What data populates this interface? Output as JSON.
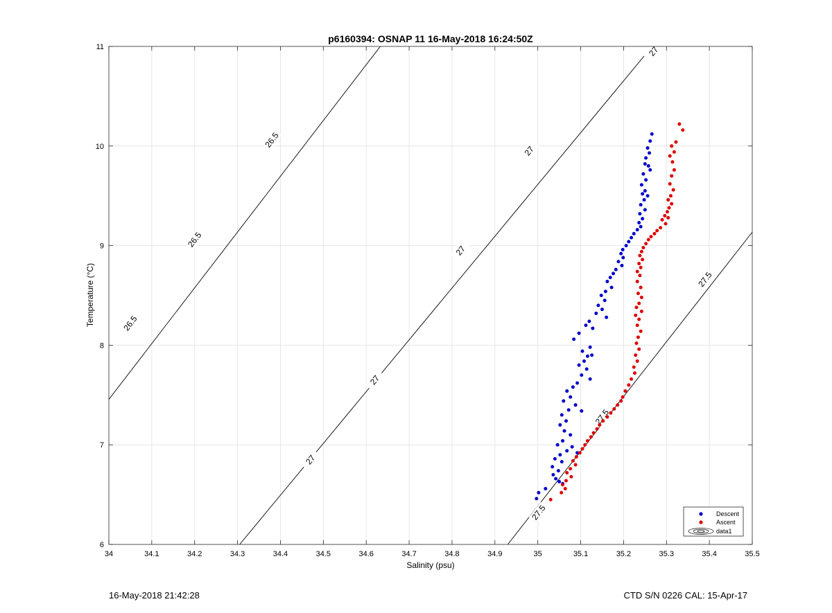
{
  "footer": {
    "left": "16-May-2018 21:42:28",
    "right": "CTD S/N 0226  CAL: 15-Apr-17"
  },
  "chart_data": {
    "type": "scatter",
    "title": "p6160394: OSNAP 11 16-May-2018 16:24:50Z",
    "xlabel": "Salinity (psu)",
    "ylabel": "Temperature (°C)",
    "xlim": [
      34,
      35.5
    ],
    "ylim": [
      6,
      11
    ],
    "xticks": [
      "34",
      "34.1",
      "34.2",
      "34.3",
      "34.4",
      "34.5",
      "34.6",
      "34.7",
      "34.8",
      "34.9",
      "35",
      "35.1",
      "35.2",
      "35.3",
      "35.4",
      "35.5"
    ],
    "yticks": [
      "6",
      "7",
      "8",
      "9",
      "10",
      "11"
    ],
    "grid": true,
    "legend_position": "bottom-right",
    "legend": [
      "Descent",
      "Ascent",
      "data1"
    ],
    "series": [
      {
        "name": "Descent",
        "color": "#0000cc",
        "points": [
          [
            35.266,
            10.12
          ],
          [
            35.262,
            10.05
          ],
          [
            35.256,
            9.98
          ],
          [
            35.26,
            9.93
          ],
          [
            35.252,
            9.88
          ],
          [
            35.25,
            9.82
          ],
          [
            35.258,
            9.8
          ],
          [
            35.262,
            9.76
          ],
          [
            35.246,
            9.72
          ],
          [
            35.252,
            9.66
          ],
          [
            35.242,
            9.61
          ],
          [
            35.25,
            9.55
          ],
          [
            35.244,
            9.52
          ],
          [
            35.256,
            9.5
          ],
          [
            35.248,
            9.46
          ],
          [
            35.24,
            9.41
          ],
          [
            35.25,
            9.36
          ],
          [
            35.238,
            9.32
          ],
          [
            35.244,
            9.27
          ],
          [
            35.236,
            9.23
          ],
          [
            35.24,
            9.19
          ],
          [
            35.232,
            9.16
          ],
          [
            35.224,
            9.12
          ],
          [
            35.218,
            9.08
          ],
          [
            35.212,
            9.04
          ],
          [
            35.206,
            9.0
          ],
          [
            35.198,
            8.96
          ],
          [
            35.194,
            8.92
          ],
          [
            35.199,
            8.88
          ],
          [
            35.188,
            8.84
          ],
          [
            35.196,
            8.8
          ],
          [
            35.182,
            8.76
          ],
          [
            35.176,
            8.72
          ],
          [
            35.169,
            8.68
          ],
          [
            35.162,
            8.64
          ],
          [
            35.172,
            8.58
          ],
          [
            35.158,
            8.54
          ],
          [
            35.148,
            8.5
          ],
          [
            35.156,
            8.45
          ],
          [
            35.141,
            8.4
          ],
          [
            35.15,
            8.36
          ],
          [
            35.136,
            8.32
          ],
          [
            35.16,
            8.28
          ],
          [
            35.12,
            8.24
          ],
          [
            35.112,
            8.2
          ],
          [
            35.128,
            8.17
          ],
          [
            35.096,
            8.12
          ],
          [
            35.084,
            8.06
          ],
          [
            35.122,
            7.98
          ],
          [
            35.104,
            7.94
          ],
          [
            35.116,
            7.89
          ],
          [
            35.126,
            7.9
          ],
          [
            35.108,
            7.84
          ],
          [
            35.096,
            7.8
          ],
          [
            35.114,
            7.76
          ],
          [
            35.102,
            7.7
          ],
          [
            35.122,
            7.66
          ],
          [
            35.092,
            7.62
          ],
          [
            35.082,
            7.58
          ],
          [
            35.068,
            7.54
          ],
          [
            35.076,
            7.48
          ],
          [
            35.06,
            7.44
          ],
          [
            35.088,
            7.4
          ],
          [
            35.072,
            7.35
          ],
          [
            35.102,
            7.34
          ],
          [
            35.056,
            7.3
          ],
          [
            35.066,
            7.24
          ],
          [
            35.052,
            7.2
          ],
          [
            35.062,
            7.14
          ],
          [
            35.076,
            7.1
          ],
          [
            35.058,
            7.04
          ],
          [
            35.046,
            7.0
          ],
          [
            35.08,
            6.98
          ],
          [
            35.068,
            6.94
          ],
          [
            35.092,
            6.92
          ],
          [
            35.052,
            6.9
          ],
          [
            35.04,
            6.86
          ],
          [
            35.056,
            6.83
          ],
          [
            35.034,
            6.78
          ],
          [
            35.048,
            6.74
          ],
          [
            35.036,
            6.7
          ],
          [
            35.042,
            6.66
          ],
          [
            35.05,
            6.63
          ],
          [
            35.058,
            6.61
          ],
          [
            35.018,
            6.56
          ],
          [
            35.002,
            6.52
          ],
          [
            34.997,
            6.46
          ]
        ]
      },
      {
        "name": "Ascent",
        "color": "#dd0000",
        "points": [
          [
            35.33,
            10.22
          ],
          [
            35.338,
            10.16
          ],
          [
            35.312,
            10.0
          ],
          [
            35.322,
            10.04
          ],
          [
            35.318,
            9.94
          ],
          [
            35.308,
            9.9
          ],
          [
            35.314,
            9.84
          ],
          [
            35.318,
            9.76
          ],
          [
            35.312,
            9.7
          ],
          [
            35.308,
            9.62
          ],
          [
            35.316,
            9.56
          ],
          [
            35.31,
            9.5
          ],
          [
            35.304,
            9.46
          ],
          [
            35.312,
            9.42
          ],
          [
            35.306,
            9.38
          ],
          [
            35.302,
            9.34
          ],
          [
            35.296,
            9.3
          ],
          [
            35.304,
            9.28
          ],
          [
            35.29,
            9.26
          ],
          [
            35.298,
            9.22
          ],
          [
            35.286,
            9.18
          ],
          [
            35.278,
            9.15
          ],
          [
            35.272,
            9.12
          ],
          [
            35.264,
            9.09
          ],
          [
            35.258,
            9.06
          ],
          [
            35.252,
            9.02
          ],
          [
            35.246,
            8.98
          ],
          [
            35.242,
            8.94
          ],
          [
            35.238,
            8.9
          ],
          [
            35.244,
            8.86
          ],
          [
            35.236,
            8.82
          ],
          [
            35.24,
            8.78
          ],
          [
            35.232,
            8.74
          ],
          [
            35.238,
            8.7
          ],
          [
            35.232,
            8.64
          ],
          [
            35.24,
            8.58
          ],
          [
            35.234,
            8.52
          ],
          [
            35.242,
            8.48
          ],
          [
            35.236,
            8.42
          ],
          [
            35.23,
            8.38
          ],
          [
            35.242,
            8.34
          ],
          [
            35.228,
            8.3
          ],
          [
            35.236,
            8.26
          ],
          [
            35.232,
            8.2
          ],
          [
            35.24,
            8.14
          ],
          [
            35.234,
            8.08
          ],
          [
            35.23,
            8.02
          ],
          [
            35.236,
            7.96
          ],
          [
            35.228,
            7.9
          ],
          [
            35.232,
            7.84
          ],
          [
            35.224,
            7.78
          ],
          [
            35.226,
            7.72
          ],
          [
            35.218,
            7.66
          ],
          [
            35.212,
            7.6
          ],
          [
            35.204,
            7.54
          ],
          [
            35.198,
            7.48
          ],
          [
            35.194,
            7.44
          ],
          [
            35.186,
            7.4
          ],
          [
            35.178,
            7.36
          ],
          [
            35.17,
            7.32
          ],
          [
            35.162,
            7.28
          ],
          [
            35.152,
            7.24
          ],
          [
            35.144,
            7.2
          ],
          [
            35.138,
            7.16
          ],
          [
            35.13,
            7.12
          ],
          [
            35.124,
            7.08
          ],
          [
            35.116,
            7.04
          ],
          [
            35.11,
            7.0
          ],
          [
            35.104,
            6.96
          ],
          [
            35.098,
            6.92
          ],
          [
            35.09,
            6.88
          ],
          [
            35.082,
            6.84
          ],
          [
            35.088,
            6.8
          ],
          [
            35.076,
            6.76
          ],
          [
            35.068,
            6.72
          ],
          [
            35.078,
            6.68
          ],
          [
            35.066,
            6.64
          ],
          [
            35.058,
            6.6
          ],
          [
            35.064,
            6.56
          ],
          [
            35.055,
            6.52
          ],
          [
            35.03,
            6.45
          ]
        ]
      }
    ],
    "isopycnals": [
      {
        "label": "26.5",
        "salinity_at_T6": 33.74,
        "slope_T_per_psu": 5.6,
        "label_positions": [
          [
            34.05,
            8.22
          ],
          [
            34.2,
            9.06
          ],
          [
            34.38,
            10.06
          ]
        ]
      },
      {
        "label": "27",
        "salinity_at_T6": 34.305,
        "slope_T_per_psu": 5.2,
        "label_positions": [
          [
            34.47,
            6.85
          ],
          [
            34.62,
            7.65
          ],
          [
            34.82,
            8.95
          ],
          [
            34.98,
            9.95
          ],
          [
            35.27,
            10.95
          ]
        ]
      },
      {
        "label": "27.5",
        "salinity_at_T6": 34.93,
        "slope_T_per_psu": 5.5,
        "label_positions": [
          [
            35.002,
            6.32
          ],
          [
            35.15,
            7.28
          ],
          [
            35.39,
            8.66
          ]
        ]
      }
    ]
  }
}
